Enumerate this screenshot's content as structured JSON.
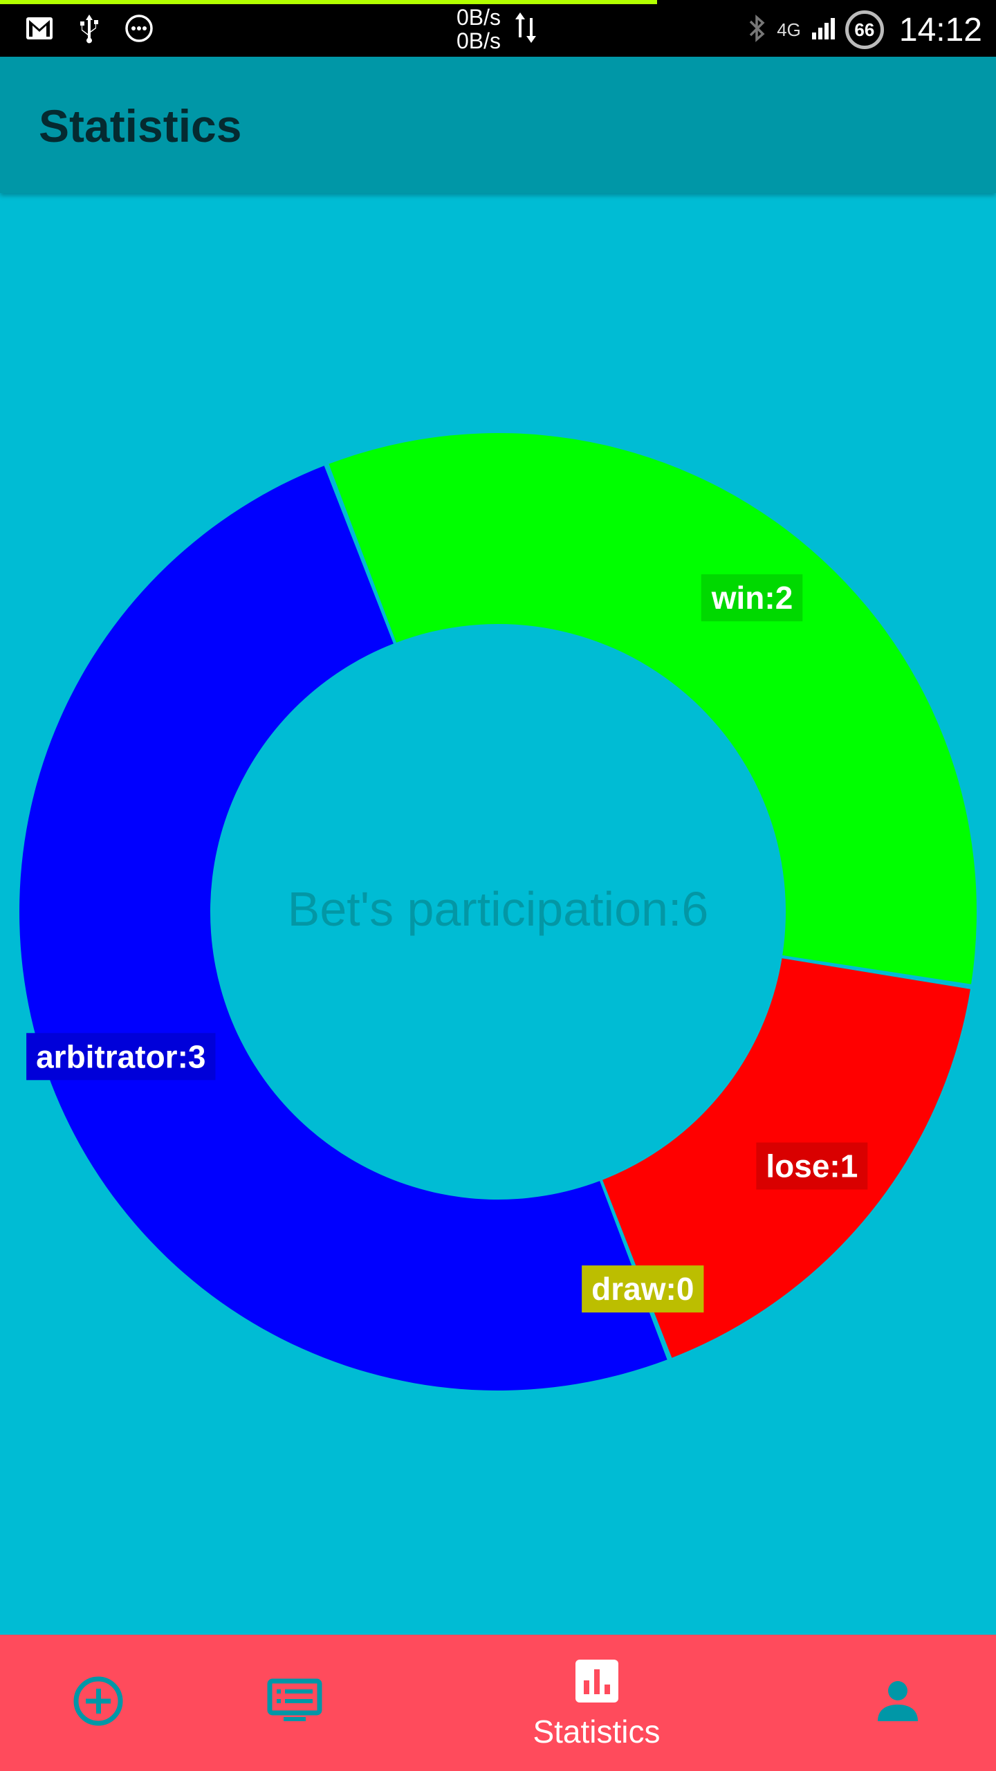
{
  "status_bar": {
    "net_speed_up": "0B/s",
    "net_speed_down": "0B/s",
    "network_type": "4G",
    "battery": "66",
    "time": "14:12"
  },
  "app_bar": {
    "title": "Statistics"
  },
  "chart_data": {
    "type": "pie",
    "center_label": "Bet's participation:6",
    "total": 6,
    "slices": [
      {
        "label": "win:2",
        "name": "win",
        "value": 2,
        "color": "#00FF00"
      },
      {
        "label": "lose:1",
        "name": "lose",
        "value": 1,
        "color": "#FF0000"
      },
      {
        "label": "draw:0",
        "name": "draw",
        "value": 0,
        "color": "#DDE000"
      },
      {
        "label": "arbitrator:3",
        "name": "arbitrator",
        "value": 3,
        "color": "#0000FF"
      }
    ]
  },
  "bottom_nav": {
    "items": [
      {
        "icon": "add-circle-icon",
        "label": "",
        "active": false
      },
      {
        "icon": "list-icon",
        "label": "",
        "active": false
      },
      {
        "icon": "bar-chart-icon",
        "label": "Statistics",
        "active": true
      },
      {
        "icon": "person-icon",
        "label": "",
        "active": false
      }
    ]
  },
  "colors": {
    "status_bar": "#000000",
    "app_bar": "#0097A7",
    "background": "#00BCD4",
    "bottom_nav": "#FF4B5C",
    "nav_inactive_icon": "#0097A7",
    "nav_active_icon": "#FFFFFF"
  }
}
